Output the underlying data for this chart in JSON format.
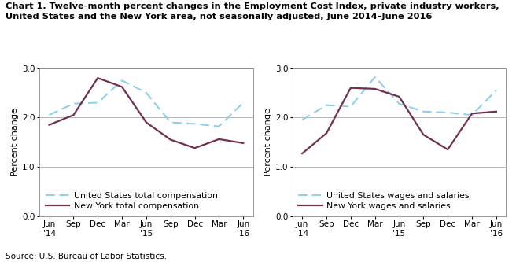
{
  "title_line1": "Chart 1. Twelve-month percent changes in the Employment Cost Index, private industry workers,",
  "title_line2": "United States and the New York area, not seasonally adjusted, June 2014–June 2016",
  "source": "Source: U.S. Bureau of Labor Statistics.",
  "ylabel": "Percent change",
  "yticks": [
    0.0,
    1.0,
    2.0,
    3.0
  ],
  "ylim": [
    0.0,
    3.0
  ],
  "left_chart": {
    "us_total_comp": [
      2.05,
      2.28,
      2.3,
      2.75,
      2.5,
      1.9,
      1.87,
      1.82,
      2.3
    ],
    "ny_total_comp": [
      1.85,
      2.05,
      2.8,
      2.62,
      1.9,
      1.55,
      1.38,
      1.56,
      1.48
    ],
    "us_label": "United States total compensation",
    "ny_label": "New York total compensation"
  },
  "right_chart": {
    "us_wages_sal": [
      1.95,
      2.25,
      2.22,
      2.82,
      2.28,
      2.12,
      2.1,
      2.05,
      2.55
    ],
    "ny_wages_sal": [
      1.27,
      1.68,
      2.6,
      2.58,
      2.42,
      1.65,
      1.35,
      2.08,
      2.12
    ],
    "us_label": "United States wages and salaries",
    "ny_label": "New York wages and salaries"
  },
  "us_color": "#87CEEB",
  "ny_color": "#722F4F",
  "us_linewidth": 1.4,
  "ny_linewidth": 1.6,
  "grid_color": "#aaaaaa",
  "bg_color": "#ffffff",
  "title_fontsize": 8.2,
  "axis_label_fontsize": 8,
  "tick_fontsize": 7.5,
  "legend_fontsize": 7.8,
  "source_fontsize": 7.5
}
